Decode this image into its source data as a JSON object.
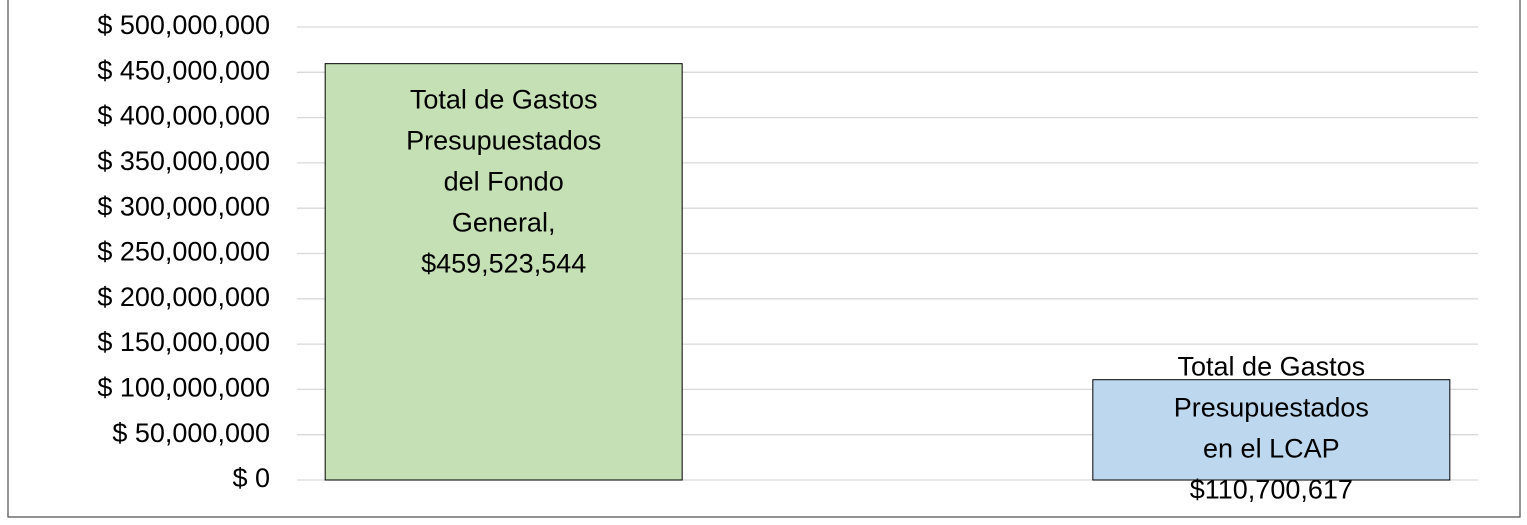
{
  "chart_data": {
    "type": "bar",
    "categories": [
      null,
      null
    ],
    "values": [
      459523544,
      110700617
    ],
    "value_labels": [
      "Total de Gastos Presupuestados del Fondo General, $459,523,544",
      "Total de Gastos Presupuestados en el LCAP $110,700,617"
    ],
    "colors": [
      "#c5e0b4",
      "#bdd7ee"
    ],
    "ylim": [
      0,
      500000000
    ],
    "yticks": [
      {
        "value": 0,
        "label": "$ 0"
      },
      {
        "value": 50000000,
        "label": "$ 50,000,000"
      },
      {
        "value": 100000000,
        "label": "$ 100,000,000"
      },
      {
        "value": 150000000,
        "label": "$ 150,000,000"
      },
      {
        "value": 200000000,
        "label": "$ 200,000,000"
      },
      {
        "value": 250000000,
        "label": "$ 250,000,000"
      },
      {
        "value": 300000000,
        "label": "$ 300,000,000"
      },
      {
        "value": 350000000,
        "label": "$ 350,000,000"
      },
      {
        "value": 400000000,
        "label": "$ 400,000,000"
      },
      {
        "value": 450000000,
        "label": "$ 450,000,000"
      },
      {
        "value": 500000000,
        "label": "$ 500,000,000"
      }
    ],
    "grid": true
  }
}
